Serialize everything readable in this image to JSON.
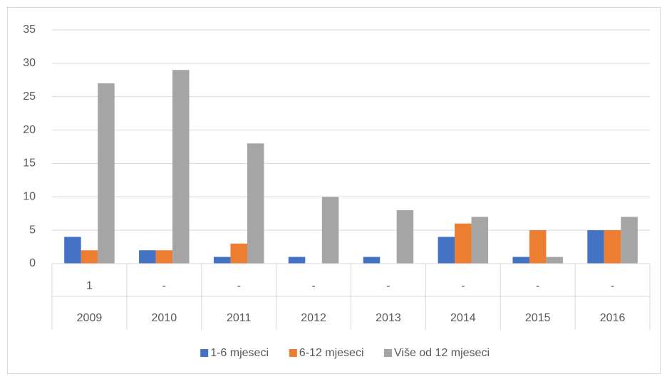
{
  "chart_data": {
    "type": "bar",
    "categories": [
      "2009",
      "2010",
      "2011",
      "2012",
      "2013",
      "2014",
      "2015",
      "2016"
    ],
    "category_sublabels": [
      "1",
      "-",
      "-",
      "-",
      "-",
      "-",
      "-",
      "-"
    ],
    "series": [
      {
        "name": "1-6 mjeseci",
        "color": "#4472c4",
        "values": [
          4,
          2,
          1,
          1,
          1,
          4,
          1,
          5
        ]
      },
      {
        "name": "6-12 mjeseci",
        "color": "#ed7d31",
        "values": [
          2,
          2,
          3,
          null,
          null,
          6,
          5,
          5
        ]
      },
      {
        "name": "Više od 12 mjeseci",
        "color": "#a5a5a5",
        "values": [
          27,
          29,
          18,
          10,
          8,
          7,
          1,
          7
        ]
      }
    ],
    "ylim": [
      0,
      35
    ],
    "yticks": [
      0,
      5,
      10,
      15,
      20,
      25,
      30,
      35
    ],
    "grid": true,
    "legend": "bottom"
  }
}
